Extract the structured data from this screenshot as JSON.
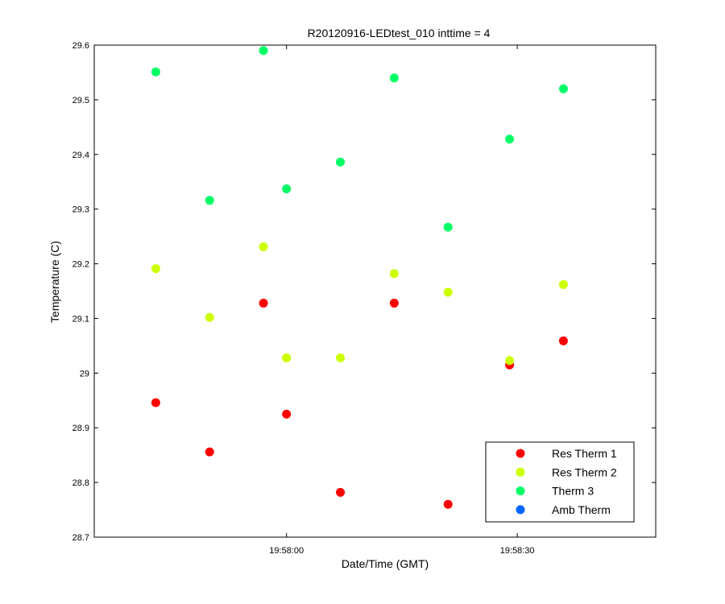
{
  "chart_data": {
    "type": "scatter",
    "title": "R20120916-LEDtest_010 inttime = 4",
    "xlabel": "Date/Time (GMT)",
    "ylabel": "Temperature (C)",
    "xlim": [
      "19:57:35",
      "19:58:48"
    ],
    "ylim": [
      28.7,
      29.6
    ],
    "x_ticks": [
      "19:58:00",
      "19:58:30"
    ],
    "y_ticks": [
      "28.7",
      "28.8",
      "28.9",
      "29",
      "29.1",
      "29.2",
      "29.3",
      "29.4",
      "29.5",
      "29.6"
    ],
    "grid": false,
    "legend_position": "bottom-right",
    "x": [
      "19:57:43",
      "19:57:50",
      "19:57:57",
      "19:58:00",
      "19:58:07",
      "19:58:14",
      "19:58:21",
      "19:58:29",
      "19:58:36"
    ],
    "series": [
      {
        "name": "Res Therm 1",
        "color": "#ff0000",
        "x": [
          "19:57:43",
          "19:57:50",
          "19:57:57",
          "19:58:00",
          "19:58:07",
          "19:58:14",
          "19:58:21",
          "19:58:29",
          "19:58:36"
        ],
        "values": [
          28.946,
          28.856,
          29.128,
          28.925,
          28.782,
          29.128,
          28.76,
          29.015,
          29.059
        ]
      },
      {
        "name": "Res Therm 2",
        "color": "#ccff00",
        "x": [
          "19:57:43",
          "19:57:50",
          "19:57:57",
          "19:58:00",
          "19:58:07",
          "19:58:14",
          "19:58:21",
          "19:58:29",
          "19:58:36"
        ],
        "values": [
          29.191,
          29.102,
          29.231,
          29.028,
          29.028,
          29.182,
          29.148,
          29.023,
          29.162
        ]
      },
      {
        "name": "Therm 3",
        "color": "#00ff66",
        "x": [
          "19:57:43",
          "19:57:50",
          "19:57:57",
          "19:58:00",
          "19:58:07",
          "19:58:14",
          "19:58:21",
          "19:58:29",
          "19:58:36"
        ],
        "values": [
          29.551,
          29.316,
          29.59,
          29.337,
          29.386,
          29.54,
          29.267,
          29.428,
          29.52
        ]
      },
      {
        "name": "Amb Therm",
        "color": "#0066ff",
        "x": [],
        "values": []
      }
    ]
  }
}
